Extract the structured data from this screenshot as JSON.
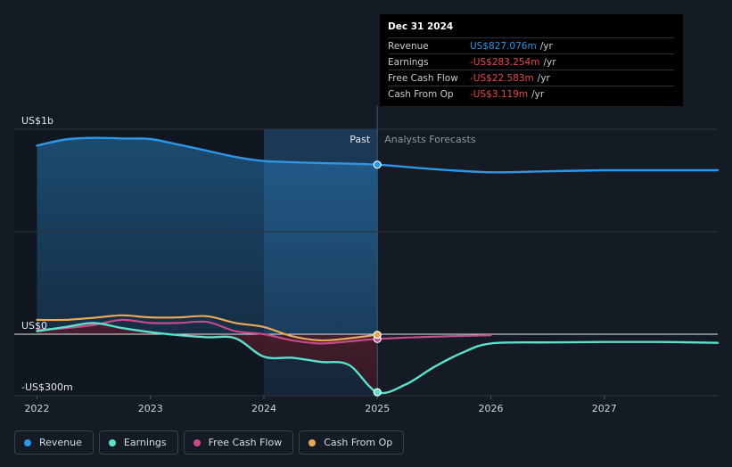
{
  "colors": {
    "revenue": "#2d96e6",
    "earnings": "#5ce0cc",
    "fcf": "#c74a8a",
    "cfo": "#e6a85a",
    "background": "#151b24"
  },
  "tooltip": {
    "date": "Dec 31 2024",
    "rows": [
      {
        "label": "Revenue",
        "value": "US$827.076m",
        "unit": "/yr",
        "color": "#2d96e6"
      },
      {
        "label": "Earnings",
        "value": "-US$283.254m",
        "unit": "/yr",
        "color": "#e8474c"
      },
      {
        "label": "Free Cash Flow",
        "value": "-US$22.583m",
        "unit": "/yr",
        "color": "#e8474c"
      },
      {
        "label": "Cash From Op",
        "value": "-US$3.119m",
        "unit": "/yr",
        "color": "#e8474c"
      }
    ]
  },
  "legend": [
    {
      "label": "Revenue",
      "color": "#2d96e6"
    },
    {
      "label": "Earnings",
      "color": "#5ce0cc"
    },
    {
      "label": "Free Cash Flow",
      "color": "#c74a8a"
    },
    {
      "label": "Cash From Op",
      "color": "#e6a85a"
    }
  ],
  "chart_data": {
    "type": "line",
    "title": "",
    "xlabel": "",
    "ylabel": "",
    "xlim": [
      2021.8,
      2028.0
    ],
    "ylim": [
      -300,
      1000
    ],
    "y_tick_labels": [
      {
        "value": 1000,
        "label": "US$1b"
      },
      {
        "value": 0,
        "label": "US$0"
      },
      {
        "value": -300,
        "label": "-US$300m"
      }
    ],
    "x_ticks": [
      {
        "value": 2022,
        "label": "2022"
      },
      {
        "value": 2023,
        "label": "2023"
      },
      {
        "value": 2024,
        "label": "2024"
      },
      {
        "value": 2025,
        "label": "2025"
      },
      {
        "value": 2026,
        "label": "2026"
      },
      {
        "value": 2027,
        "label": "2027"
      }
    ],
    "divider_x": 2025.0,
    "past_label": "Past",
    "forecast_label": "Analysts Forecasts",
    "highlight_start": 2024.0,
    "highlight_end": 2025.0,
    "grid": true,
    "legend_position": "bottom-left",
    "series": [
      {
        "name": "Revenue",
        "key": "revenue",
        "x": [
          2022.0,
          2022.25,
          2022.5,
          2022.75,
          2023.0,
          2023.25,
          2023.5,
          2023.75,
          2024.0,
          2024.5,
          2025.0,
          2025.5,
          2026.0,
          2026.5,
          2027.0,
          2027.5,
          2028.0
        ],
        "values": [
          920,
          950,
          958,
          955,
          952,
          925,
          895,
          865,
          845,
          835,
          827,
          805,
          790,
          795,
          800,
          800,
          800
        ]
      },
      {
        "name": "Earnings",
        "key": "earnings",
        "x": [
          2022.0,
          2022.25,
          2022.5,
          2022.75,
          2023.0,
          2023.25,
          2023.5,
          2023.75,
          2024.0,
          2024.25,
          2024.5,
          2024.75,
          2025.0,
          2025.25,
          2025.5,
          2025.75,
          2026.0,
          2026.5,
          2027.0,
          2027.5,
          2028.0
        ],
        "values": [
          15,
          35,
          55,
          30,
          10,
          -5,
          -15,
          -20,
          -110,
          -115,
          -135,
          -150,
          -283,
          -245,
          -160,
          -90,
          -45,
          -40,
          -38,
          -38,
          -42
        ]
      },
      {
        "name": "Free Cash Flow",
        "key": "fcf",
        "x": [
          2022.0,
          2022.25,
          2022.5,
          2022.75,
          2023.0,
          2023.25,
          2023.5,
          2023.75,
          2024.0,
          2024.25,
          2024.5,
          2024.75,
          2025.0,
          2025.5,
          2026.0
        ],
        "values": [
          20,
          30,
          45,
          70,
          55,
          55,
          60,
          15,
          0,
          -30,
          -45,
          -35,
          -23,
          -12,
          -5
        ]
      },
      {
        "name": "Cash From Op",
        "key": "cfo",
        "x": [
          2022.0,
          2022.25,
          2022.5,
          2022.75,
          2023.0,
          2023.25,
          2023.5,
          2023.75,
          2024.0,
          2024.25,
          2024.5,
          2024.75,
          2025.0
        ],
        "values": [
          70,
          70,
          80,
          92,
          82,
          82,
          88,
          55,
          35,
          -10,
          -30,
          -20,
          -3
        ]
      }
    ]
  }
}
